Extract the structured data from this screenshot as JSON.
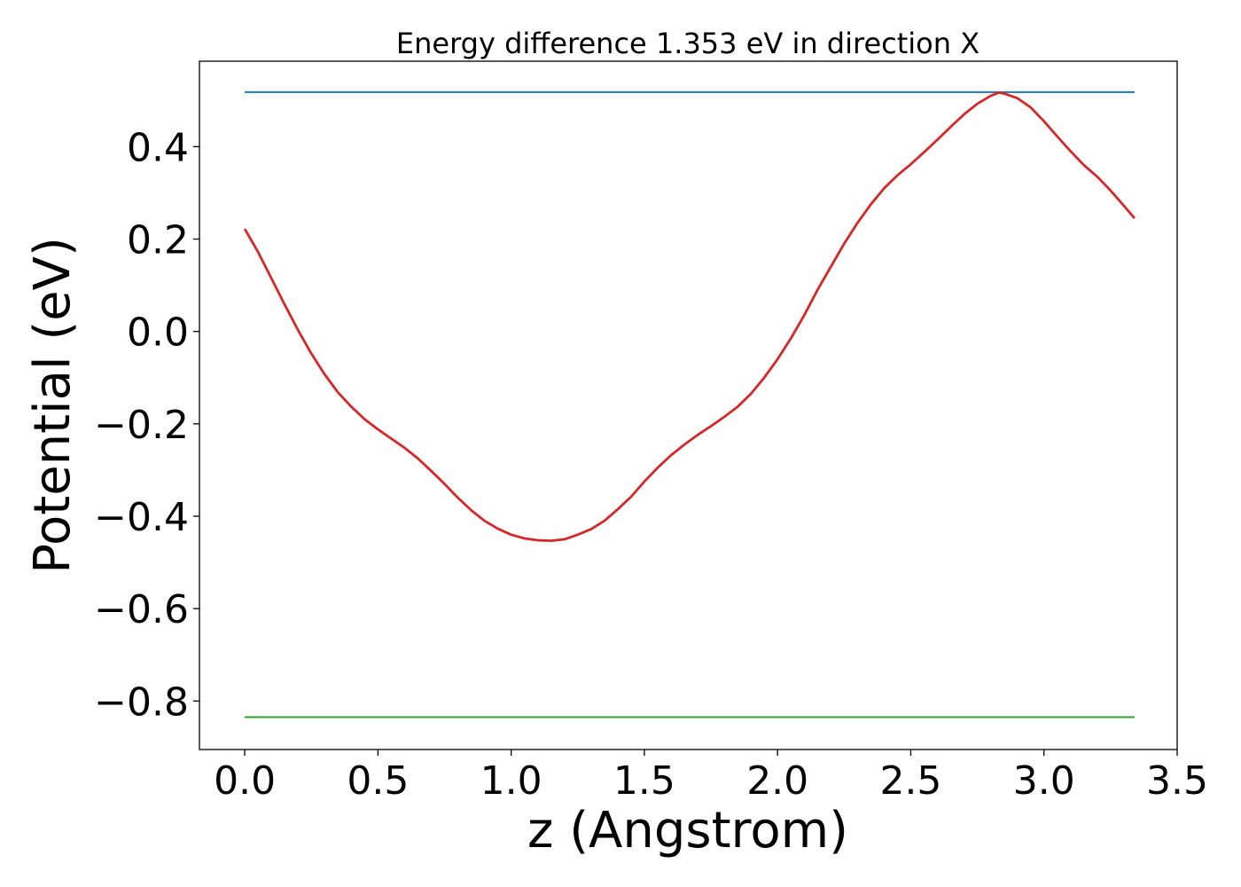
{
  "chart_data": {
    "type": "line",
    "title": "Energy difference 1.353 eV in direction X",
    "xlabel": "z (Angstrom)",
    "ylabel": "Potential (eV)",
    "xlim": [
      -0.17,
      3.5
    ],
    "ylim": [
      -0.905,
      0.585
    ],
    "xticks": [
      0.0,
      0.5,
      1.0,
      1.5,
      2.0,
      2.5,
      3.0,
      3.5
    ],
    "xtick_labels": [
      "0.0",
      "0.5",
      "1.0",
      "1.5",
      "2.0",
      "2.5",
      "3.0",
      "3.5"
    ],
    "yticks": [
      0.4,
      0.2,
      0.0,
      -0.2,
      -0.4,
      -0.6,
      -0.8
    ],
    "ytick_labels": [
      "0.4",
      "0.2",
      "0.0",
      "−0.2",
      "−0.4",
      "−0.6",
      "−0.8"
    ],
    "grid": false,
    "series": [
      {
        "color": "#1f77b4",
        "x": [
          0.0,
          3.34
        ],
        "y": [
          0.518,
          0.518
        ]
      },
      {
        "color": "#2ca02c",
        "x": [
          0.0,
          3.34
        ],
        "y": [
          -0.835,
          -0.835
        ]
      },
      {
        "color": "#d62728",
        "x": [
          0.0,
          0.05,
          0.1,
          0.15,
          0.2,
          0.25,
          0.3,
          0.35,
          0.4,
          0.45,
          0.5,
          0.55,
          0.6,
          0.65,
          0.7,
          0.75,
          0.8,
          0.85,
          0.9,
          0.95,
          1.0,
          1.05,
          1.1,
          1.15,
          1.2,
          1.25,
          1.3,
          1.35,
          1.4,
          1.45,
          1.5,
          1.55,
          1.6,
          1.65,
          1.7,
          1.75,
          1.8,
          1.85,
          1.9,
          1.95,
          2.0,
          2.05,
          2.1,
          2.15,
          2.2,
          2.25,
          2.3,
          2.35,
          2.4,
          2.45,
          2.5,
          2.55,
          2.6,
          2.65,
          2.7,
          2.75,
          2.8,
          2.83,
          2.85,
          2.9,
          2.95,
          3.0,
          3.05,
          3.1,
          3.15,
          3.2,
          3.25,
          3.3,
          3.34
        ],
        "y": [
          0.222,
          0.172,
          0.115,
          0.058,
          0.003,
          -0.048,
          -0.093,
          -0.132,
          -0.163,
          -0.19,
          -0.212,
          -0.232,
          -0.252,
          -0.275,
          -0.302,
          -0.33,
          -0.36,
          -0.387,
          -0.41,
          -0.427,
          -0.44,
          -0.448,
          -0.452,
          -0.453,
          -0.45,
          -0.44,
          -0.428,
          -0.41,
          -0.385,
          -0.358,
          -0.325,
          -0.295,
          -0.268,
          -0.245,
          -0.224,
          -0.205,
          -0.185,
          -0.163,
          -0.135,
          -0.1,
          -0.06,
          -0.015,
          0.035,
          0.09,
          0.14,
          0.19,
          0.235,
          0.275,
          0.31,
          0.338,
          0.362,
          0.388,
          0.415,
          0.443,
          0.47,
          0.493,
          0.51,
          0.517,
          0.515,
          0.505,
          0.485,
          0.455,
          0.422,
          0.39,
          0.36,
          0.335,
          0.305,
          0.272,
          0.245
        ]
      }
    ]
  }
}
